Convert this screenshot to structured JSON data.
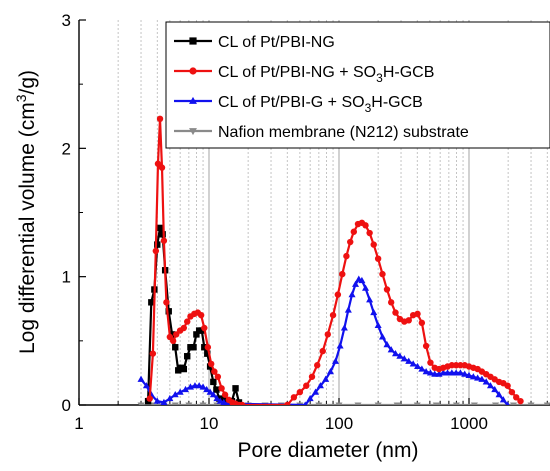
{
  "chart_data": {
    "type": "line",
    "title": "",
    "xlabel": "Pore diameter (nm)",
    "ylabel_main": "Log differential volume (cm",
    "ylabel_sup1": "3",
    "ylabel_tail": "/g)",
    "x_scale": "log",
    "xlim": [
      1,
      4500
    ],
    "ylim": [
      0,
      3
    ],
    "x_ticks": [
      1,
      10,
      100,
      1000
    ],
    "x_tick_labels": [
      "1",
      "10",
      "100",
      "1000"
    ],
    "y_ticks": [
      0,
      1,
      2,
      3
    ],
    "y_tick_labels": [
      "0",
      "1",
      "2",
      "3"
    ],
    "grid": "vertical dotted minor gridlines",
    "legend_position": "top-right",
    "series": [
      {
        "name": "CL of Pt/PBI-NG",
        "legend_parts": [
          "CL of Pt/PBI-NG"
        ],
        "color": "#000000",
        "marker": "square",
        "x": [
          3.4,
          3.6,
          3.8,
          4.0,
          4.2,
          4.4,
          4.6,
          4.9,
          5.2,
          5.5,
          5.8,
          6.1,
          6.4,
          6.8,
          7.2,
          7.6,
          8.0,
          8.4,
          8.8,
          9.2,
          9.7,
          10.2,
          10.8,
          11.4,
          12.0,
          13.0,
          14.0,
          15.0,
          16.0,
          17.0
        ],
        "y": [
          0.03,
          0.8,
          0.9,
          1.25,
          1.38,
          1.33,
          1.05,
          0.73,
          0.55,
          0.45,
          0.27,
          0.29,
          0.28,
          0.38,
          0.45,
          0.45,
          0.55,
          0.58,
          0.58,
          0.45,
          0.4,
          0.3,
          0.18,
          0.12,
          0.05,
          0.04,
          0.02,
          0.03,
          0.13,
          0.02
        ]
      },
      {
        "name": "CL of Pt/PBI-NG + SO3H-GCB",
        "legend_parts": [
          "CL of Pt/PBI-NG + SO",
          "3",
          "H-GCB"
        ],
        "color": "#ee1111",
        "marker": "circle",
        "x": [
          3.5,
          3.7,
          3.9,
          4.05,
          4.2,
          4.35,
          4.5,
          4.7,
          5.0,
          5.3,
          5.6,
          6.0,
          6.4,
          6.8,
          7.2,
          7.7,
          8.2,
          8.7,
          9.2,
          9.8,
          10.4,
          11.0,
          11.7,
          12.5,
          13.3,
          14.2,
          15.1,
          16.0,
          17.0,
          18.0,
          40,
          45,
          50,
          56,
          62,
          68,
          75,
          82,
          90,
          98,
          106,
          114,
          122,
          130,
          140,
          150,
          160,
          172,
          185,
          200,
          216,
          234,
          252,
          272,
          294,
          318,
          344,
          372,
          402,
          434,
          468,
          505,
          545,
          588,
          634,
          684,
          738,
          796,
          859,
          927,
          1000,
          1080,
          1165,
          1257,
          1356,
          1463,
          1578,
          1703,
          1837,
          1982,
          2139,
          2308,
          2490
        ],
        "y": [
          0.05,
          0.4,
          1.2,
          1.88,
          2.23,
          1.85,
          1.28,
          0.8,
          0.53,
          0.5,
          0.55,
          0.58,
          0.6,
          0.65,
          0.69,
          0.71,
          0.72,
          0.7,
          0.6,
          0.45,
          0.32,
          0.26,
          0.22,
          0.13,
          0.08,
          0.04,
          0.02,
          0.01,
          0.0,
          0.0,
          0.0,
          0.06,
          0.1,
          0.15,
          0.22,
          0.31,
          0.42,
          0.55,
          0.7,
          0.86,
          1.02,
          1.16,
          1.27,
          1.35,
          1.41,
          1.42,
          1.4,
          1.34,
          1.25,
          1.14,
          1.02,
          0.9,
          0.8,
          0.72,
          0.67,
          0.65,
          0.66,
          0.7,
          0.71,
          0.64,
          0.46,
          0.33,
          0.29,
          0.28,
          0.29,
          0.3,
          0.31,
          0.31,
          0.31,
          0.31,
          0.3,
          0.29,
          0.28,
          0.26,
          0.24,
          0.22,
          0.2,
          0.18,
          0.17,
          0.15,
          0.1,
          0.06,
          0.03
        ]
      },
      {
        "name": "CL of Pt/PBI-G + SO3H-GCB",
        "legend_parts": [
          "CL of Pt/PBI-G + SO",
          "3",
          "H-GCB"
        ],
        "color": "#1111ee",
        "marker": "triangle",
        "x": [
          3.0,
          3.3,
          3.6,
          4.0,
          4.5,
          5.0,
          5.5,
          6.0,
          6.6,
          7.2,
          7.8,
          8.4,
          9.0,
          9.6,
          10.2,
          10.8,
          11.5,
          12.2,
          13.0,
          14.0,
          55,
          60,
          66,
          72,
          79,
          86,
          94,
          102,
          110,
          118,
          126,
          134,
          142,
          150,
          160,
          172,
          185,
          200,
          216,
          234,
          252,
          272,
          294,
          318,
          344,
          372,
          402,
          434,
          468,
          505,
          545,
          588,
          634,
          684,
          738,
          796,
          859,
          927,
          1000,
          1080,
          1165,
          1257,
          1356,
          1463,
          1578,
          1703,
          1837,
          1982
        ],
        "y": [
          0.2,
          0.15,
          0.08,
          0.03,
          0.02,
          0.05,
          0.08,
          0.1,
          0.12,
          0.14,
          0.15,
          0.15,
          0.14,
          0.12,
          0.1,
          0.08,
          0.05,
          0.03,
          0.02,
          0.01,
          0.0,
          0.05,
          0.1,
          0.15,
          0.2,
          0.26,
          0.34,
          0.46,
          0.6,
          0.74,
          0.86,
          0.94,
          0.98,
          0.97,
          0.91,
          0.82,
          0.72,
          0.62,
          0.53,
          0.47,
          0.43,
          0.4,
          0.38,
          0.36,
          0.34,
          0.32,
          0.3,
          0.28,
          0.26,
          0.25,
          0.24,
          0.24,
          0.25,
          0.25,
          0.25,
          0.25,
          0.25,
          0.24,
          0.23,
          0.22,
          0.21,
          0.2,
          0.18,
          0.15,
          0.12,
          0.08,
          0.04,
          0.0
        ]
      },
      {
        "name": "Nafion membrane (N212) substrate",
        "legend_parts": [
          "Nafion membrane (N212) substrate"
        ],
        "color": "#8a8a8a",
        "marker": "triangle-down",
        "x": [
          3.0,
          3.6,
          4.5,
          5.5,
          7.0,
          9.0,
          11.5,
          15.0,
          20.0,
          27.0,
          36.0,
          50.0,
          70.0,
          100.0,
          140.0,
          200.0,
          280.0,
          400.0,
          560.0,
          800.0,
          1100.0,
          1600.0,
          2200.0,
          3000.0,
          4000.0
        ],
        "y": [
          0,
          0,
          0,
          0,
          0,
          0,
          0,
          0,
          0,
          0,
          0,
          0,
          0,
          0,
          0,
          0,
          0,
          0,
          0,
          0,
          0,
          0,
          0,
          0,
          0
        ]
      }
    ]
  }
}
